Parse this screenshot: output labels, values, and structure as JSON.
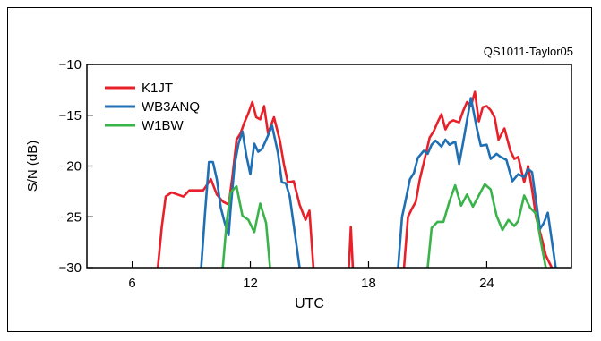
{
  "chart_data": {
    "type": "line",
    "corner_label": "QS1011-Taylor05",
    "xlabel": "UTC",
    "ylabel": "S/N (dB)",
    "xlim": [
      3.7,
      28.3
    ],
    "ylim": [
      -30,
      -10
    ],
    "xticks": [
      6,
      12,
      18,
      24
    ],
    "yticks": [
      -10,
      -15,
      -20,
      -25,
      -30
    ],
    "grid": false,
    "legend_position": "top-left",
    "series": [
      {
        "name": "K1JT",
        "color": "#e8202a",
        "segments": [
          [
            [
              7.3,
              -30
            ],
            [
              7.5,
              -26
            ],
            [
              7.7,
              -23
            ],
            [
              8.0,
              -22.6
            ],
            [
              8.3,
              -22.8
            ],
            [
              8.6,
              -23
            ],
            [
              8.9,
              -22.4
            ],
            [
              9.2,
              -22.4
            ],
            [
              9.6,
              -22.4
            ],
            [
              10.0,
              -21.3
            ],
            [
              10.3,
              -22.8
            ],
            [
              10.6,
              -23.5
            ],
            [
              10.9,
              -23.8
            ],
            [
              11.1,
              -20.9
            ],
            [
              11.3,
              -17.4
            ],
            [
              11.5,
              -16.8
            ],
            [
              11.7,
              -15.7
            ],
            [
              11.9,
              -14.8
            ],
            [
              12.1,
              -13.7
            ],
            [
              12.3,
              -15.2
            ],
            [
              12.5,
              -15.4
            ],
            [
              12.7,
              -14.1
            ],
            [
              12.9,
              -16.8
            ],
            [
              13.2,
              -15.2
            ],
            [
              13.5,
              -17.5
            ],
            [
              13.7,
              -19.8
            ],
            [
              13.9,
              -21.6
            ],
            [
              14.2,
              -21.5
            ],
            [
              14.5,
              -23.8
            ],
            [
              14.8,
              -25.3
            ],
            [
              15.0,
              -24.4
            ],
            [
              15.2,
              -30
            ]
          ],
          [
            [
              17.0,
              -30
            ],
            [
              17.1,
              -26
            ],
            [
              17.2,
              -30
            ]
          ],
          [
            [
              19.8,
              -30
            ],
            [
              20.0,
              -25.0
            ],
            [
              20.2,
              -24.2
            ],
            [
              20.4,
              -23.5
            ],
            [
              20.6,
              -21.3
            ],
            [
              20.8,
              -19.7
            ],
            [
              21.1,
              -17.2
            ],
            [
              21.3,
              -16.6
            ],
            [
              21.5,
              -15.7
            ],
            [
              21.7,
              -14.9
            ],
            [
              21.9,
              -16.4
            ],
            [
              22.1,
              -15.7
            ],
            [
              22.3,
              -15.5
            ],
            [
              22.6,
              -15.7
            ],
            [
              22.8,
              -14.6
            ],
            [
              23.0,
              -13.7
            ],
            [
              23.2,
              -14.1
            ],
            [
              23.4,
              -12.7
            ],
            [
              23.6,
              -15.6
            ],
            [
              23.8,
              -14.2
            ],
            [
              24.0,
              -14.1
            ],
            [
              24.2,
              -14.5
            ],
            [
              24.4,
              -15.2
            ],
            [
              24.6,
              -17.4
            ],
            [
              24.9,
              -16.3
            ],
            [
              25.2,
              -18.5
            ],
            [
              25.4,
              -19.3
            ],
            [
              25.6,
              -19.1
            ],
            [
              25.9,
              -21.6
            ],
            [
              26.1,
              -20.0
            ],
            [
              26.3,
              -22.3
            ],
            [
              26.5,
              -25.0
            ],
            [
              26.8,
              -27.2
            ],
            [
              27.0,
              -28.8
            ],
            [
              27.3,
              -30
            ]
          ]
        ]
      },
      {
        "name": "WB3ANQ",
        "color": "#1f6fb4",
        "segments": [
          [
            [
              9.5,
              -30
            ],
            [
              9.7,
              -24.5
            ],
            [
              9.9,
              -19.6
            ],
            [
              10.1,
              -19.6
            ],
            [
              10.3,
              -21.3
            ],
            [
              10.5,
              -24.1
            ],
            [
              10.7,
              -25.6
            ],
            [
              10.9,
              -26.8
            ],
            [
              11.0,
              -24.2
            ],
            [
              11.2,
              -19.9
            ],
            [
              11.4,
              -17.8
            ],
            [
              11.6,
              -16.6
            ],
            [
              11.8,
              -19.0
            ],
            [
              12.0,
              -20.8
            ],
            [
              12.2,
              -17.8
            ],
            [
              12.4,
              -18.6
            ],
            [
              12.6,
              -18.3
            ],
            [
              12.9,
              -17.0
            ],
            [
              13.1,
              -16.0
            ],
            [
              13.4,
              -18.7
            ],
            [
              13.6,
              -21.6
            ],
            [
              13.8,
              -21.7
            ],
            [
              14.0,
              -23.0
            ],
            [
              14.2,
              -25.8
            ],
            [
              14.5,
              -30
            ]
          ],
          [
            [
              19.5,
              -30
            ],
            [
              19.7,
              -25.0
            ],
            [
              19.9,
              -23.2
            ],
            [
              20.1,
              -21.3
            ],
            [
              20.3,
              -20.7
            ],
            [
              20.5,
              -19.2
            ],
            [
              20.8,
              -18.5
            ],
            [
              21.0,
              -18.8
            ],
            [
              21.2,
              -17.9
            ],
            [
              21.4,
              -17.5
            ],
            [
              21.7,
              -18.1
            ],
            [
              21.9,
              -17.4
            ],
            [
              22.1,
              -17.9
            ],
            [
              22.4,
              -17.6
            ],
            [
              22.6,
              -19.8
            ],
            [
              22.8,
              -17.7
            ],
            [
              23.0,
              -15.5
            ],
            [
              23.2,
              -13.3
            ],
            [
              23.5,
              -16.3
            ],
            [
              23.7,
              -18.0
            ],
            [
              24.0,
              -17.9
            ],
            [
              24.2,
              -19.3
            ],
            [
              24.5,
              -18.8
            ],
            [
              24.7,
              -19.1
            ],
            [
              25.0,
              -19.4
            ],
            [
              25.3,
              -21.5
            ],
            [
              25.6,
              -20.8
            ],
            [
              25.9,
              -21.1
            ],
            [
              26.1,
              -20.3
            ],
            [
              26.3,
              -20.6
            ],
            [
              26.5,
              -23.4
            ],
            [
              26.7,
              -26.2
            ],
            [
              26.9,
              -25.6
            ],
            [
              27.1,
              -24.6
            ],
            [
              27.5,
              -30
            ]
          ]
        ]
      },
      {
        "name": "W1BW",
        "color": "#3ab34a",
        "segments": [
          [
            [
              10.6,
              -30
            ],
            [
              10.8,
              -25.5
            ],
            [
              11.0,
              -22.6
            ],
            [
              11.3,
              -22.0
            ],
            [
              11.6,
              -24.9
            ],
            [
              11.9,
              -25.3
            ],
            [
              12.2,
              -26.5
            ],
            [
              12.5,
              -23.7
            ],
            [
              12.8,
              -25.6
            ],
            [
              13.0,
              -30
            ]
          ],
          [
            [
              21.0,
              -30
            ],
            [
              21.2,
              -26.1
            ],
            [
              21.5,
              -25.5
            ],
            [
              21.8,
              -25.5
            ],
            [
              22.1,
              -23.5
            ],
            [
              22.4,
              -21.9
            ],
            [
              22.7,
              -23.9
            ],
            [
              23.0,
              -22.8
            ],
            [
              23.3,
              -24.0
            ],
            [
              23.6,
              -22.9
            ],
            [
              23.9,
              -21.8
            ],
            [
              24.2,
              -22.3
            ],
            [
              24.5,
              -24.9
            ],
            [
              24.8,
              -26.3
            ],
            [
              25.1,
              -25.3
            ],
            [
              25.4,
              -25.9
            ],
            [
              25.6,
              -25.4
            ],
            [
              25.9,
              -22.9
            ],
            [
              26.2,
              -24.1
            ],
            [
              26.5,
              -24.7
            ],
            [
              26.8,
              -28
            ],
            [
              27.0,
              -30
            ]
          ]
        ]
      }
    ]
  }
}
